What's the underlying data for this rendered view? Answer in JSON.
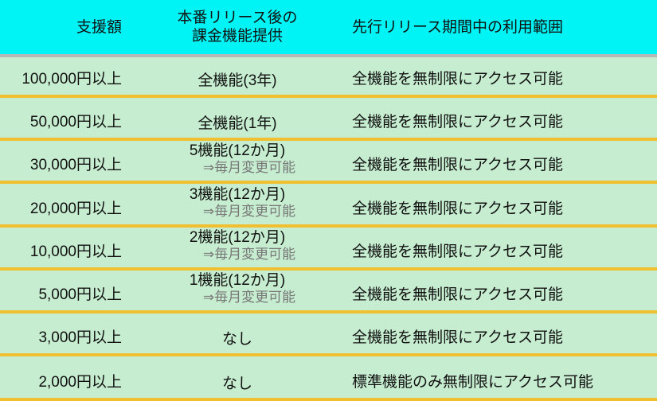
{
  "header": {
    "col1": "支援額",
    "col2_line1": "本番リリース後の",
    "col2_line2": "課金機能提供",
    "col3": "先行リリース期間中の利用範囲"
  },
  "rows": [
    {
      "amount": "100,000円以上",
      "billing": "全機能(3年)",
      "billing_note": "",
      "access": "全機能を無制限にアクセス可能"
    },
    {
      "amount": "50,000円以上",
      "billing": "全機能(1年)",
      "billing_note": "",
      "access": "全機能を無制限にアクセス可能"
    },
    {
      "amount": "30,000円以上",
      "billing": "5機能(12か月)",
      "billing_note": "⇒毎月変更可能",
      "access": "全機能を無制限にアクセス可能"
    },
    {
      "amount": "20,000円以上",
      "billing": "3機能(12か月)",
      "billing_note": "⇒毎月変更可能",
      "access": "全機能を無制限にアクセス可能"
    },
    {
      "amount": "10,000円以上",
      "billing": "2機能(12か月)",
      "billing_note": "⇒毎月変更可能",
      "access": "全機能を無制限にアクセス可能"
    },
    {
      "amount": "5,000円以上",
      "billing": "1機能(12か月)",
      "billing_note": "⇒毎月変更可能",
      "access": "全機能を無制限にアクセス可能"
    },
    {
      "amount": "3,000円以上",
      "billing": "なし",
      "billing_note": "",
      "access": "全機能を無制限にアクセス可能"
    },
    {
      "amount": "2,000円以上",
      "billing": "なし",
      "billing_note": "",
      "access": "標準機能のみ無制限にアクセス可能"
    }
  ]
}
